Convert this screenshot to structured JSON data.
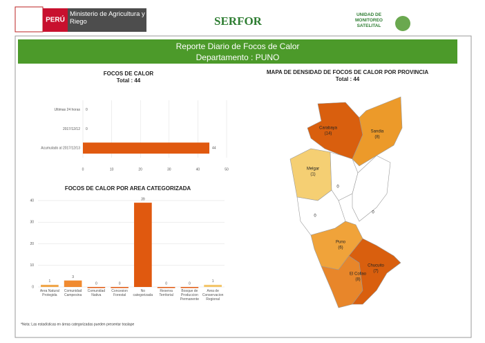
{
  "header": {
    "country": "PERÚ",
    "ministry": "Ministerio de Agricultura y Riego",
    "agency": "SERFOR",
    "unit": "UNIDAD DE MONITOREO SATELITAL"
  },
  "banner": {
    "title": "Reporte Diario de Focos de Calor",
    "subtitle": "Departamento : PUNO"
  },
  "chart_data": [
    {
      "type": "barh",
      "title": "FOCOS DE CALOR",
      "subtitle": "Total : 44",
      "categories": [
        "Ultimas 24 horas",
        "2017/12/12",
        "Acumulado al 2017/12/13"
      ],
      "values": [
        0,
        0,
        44
      ],
      "color": "#e0590f",
      "xlim": [
        0,
        50
      ],
      "xticks": [
        0,
        10,
        20,
        30,
        40,
        50
      ],
      "grid": true
    },
    {
      "type": "bar",
      "title": "FOCOS DE CALOR POR AREA CATEGORIZADA",
      "categories": [
        "Area Natural Protegida",
        "Comunidad Campesina",
        "Comunidad Nativa",
        "Concesion Forestal",
        "No categorizada",
        "Reserva Territorial",
        "Bosque de Produccion Permanente",
        "Area de Conservacion Regional"
      ],
      "values": [
        1,
        3,
        0,
        0,
        39,
        0,
        0,
        1
      ],
      "colors": [
        "#f0a64a",
        "#f08a30",
        "#e0590f",
        "#e0590f",
        "#e0590f",
        "#e0590f",
        "#e0590f",
        "#f3c66a"
      ],
      "ylim": [
        0,
        40
      ],
      "yticks": [
        0,
        10,
        20,
        30,
        40
      ],
      "grid": true
    }
  ],
  "map": {
    "title": "MAPA DE DENSIDAD DE FOCOS DE CALOR POR PROVINCIA",
    "subtitle": "Total : 44",
    "regions": [
      {
        "name": "Carabaya",
        "label": "(14)",
        "color": "#d95f0e"
      },
      {
        "name": "Sandia",
        "label": "(8)",
        "color": "#ec9a2a"
      },
      {
        "name": "Melgar",
        "label": "(1)",
        "color": "#f5cf73"
      },
      {
        "label": "0",
        "color": "#ffffff"
      },
      {
        "label": "0",
        "color": "#ffffff"
      },
      {
        "label": "0",
        "color": "#ffffff"
      },
      {
        "name": "Puno",
        "label": "(6)",
        "color": "#f0a33a"
      },
      {
        "name": "El Collao",
        "label": "(8)",
        "color": "#e8862a"
      },
      {
        "name": "Chucuito",
        "label": "(7)",
        "color": "#d95f0e"
      }
    ]
  },
  "footnote": "*Nota: Las estadísticas en áreas categorizadas pueden presentar traslape"
}
